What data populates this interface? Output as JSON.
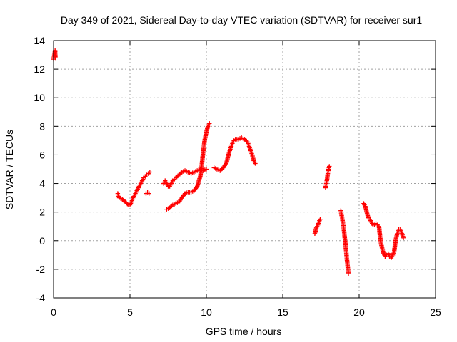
{
  "chart_data": {
    "type": "scatter",
    "title": "Day 349 of 2021, Sidereal Day-to-day VTEC variation (SDTVAR) for receiver sur1",
    "xlabel": "GPS time / hours",
    "ylabel": "SDTVAR / TECUs",
    "xlim": [
      0,
      25
    ],
    "ylim": [
      -4,
      14
    ],
    "xticks": [
      0,
      5,
      10,
      15,
      20,
      25
    ],
    "yticks": [
      -4,
      -2,
      0,
      2,
      4,
      6,
      8,
      10,
      12,
      14
    ],
    "grid": true,
    "marker": "plus",
    "color": "#ff0000",
    "segments": [
      [
        [
          0.0,
          12.7
        ],
        [
          0.05,
          13.0
        ],
        [
          0.1,
          13.3
        ],
        [
          0.12,
          12.8
        ]
      ],
      [
        [
          4.2,
          3.3
        ],
        [
          4.3,
          3.0
        ],
        [
          4.5,
          2.9
        ],
        [
          4.7,
          2.7
        ],
        [
          4.9,
          2.5
        ],
        [
          5.0,
          2.5
        ],
        [
          5.1,
          2.7
        ],
        [
          5.2,
          3.0
        ],
        [
          5.3,
          3.2
        ],
        [
          5.4,
          3.4
        ],
        [
          5.5,
          3.6
        ],
        [
          5.6,
          3.8
        ],
        [
          5.7,
          4.0
        ],
        [
          5.8,
          4.2
        ],
        [
          5.9,
          4.4
        ],
        [
          6.0,
          4.5
        ],
        [
          6.1,
          4.6
        ],
        [
          6.2,
          4.7
        ],
        [
          6.3,
          4.8
        ]
      ],
      [
        [
          6.05,
          3.3
        ],
        [
          6.15,
          3.4
        ],
        [
          6.25,
          3.3
        ]
      ],
      [
        [
          7.2,
          4.0
        ],
        [
          7.3,
          4.2
        ],
        [
          7.4,
          4.0
        ],
        [
          7.5,
          3.8
        ],
        [
          7.6,
          3.8
        ],
        [
          7.7,
          4.0
        ],
        [
          7.8,
          4.2
        ],
        [
          7.9,
          4.3
        ],
        [
          8.0,
          4.4
        ],
        [
          8.2,
          4.6
        ],
        [
          8.4,
          4.8
        ],
        [
          8.6,
          4.9
        ],
        [
          8.8,
          4.8
        ],
        [
          9.0,
          4.7
        ],
        [
          9.2,
          4.8
        ],
        [
          9.4,
          4.9
        ],
        [
          9.6,
          5.0
        ],
        [
          9.8,
          4.9
        ],
        [
          10.0,
          5.0
        ]
      ],
      [
        [
          7.4,
          2.2
        ],
        [
          7.6,
          2.3
        ],
        [
          7.8,
          2.5
        ],
        [
          8.0,
          2.6
        ],
        [
          8.2,
          2.7
        ],
        [
          8.4,
          3.0
        ],
        [
          8.6,
          3.3
        ],
        [
          8.8,
          3.4
        ],
        [
          9.0,
          3.4
        ],
        [
          9.2,
          3.5
        ],
        [
          9.4,
          3.8
        ],
        [
          9.6,
          4.5
        ],
        [
          9.7,
          5.3
        ],
        [
          9.8,
          6.3
        ],
        [
          9.9,
          7.1
        ],
        [
          10.0,
          7.6
        ],
        [
          10.1,
          8.0
        ],
        [
          10.2,
          8.2
        ]
      ],
      [
        [
          10.5,
          5.1
        ],
        [
          10.7,
          5.0
        ],
        [
          10.9,
          4.9
        ],
        [
          11.1,
          5.1
        ],
        [
          11.3,
          5.4
        ],
        [
          11.4,
          5.8
        ],
        [
          11.5,
          6.2
        ],
        [
          11.6,
          6.5
        ],
        [
          11.7,
          6.8
        ],
        [
          11.8,
          7.0
        ],
        [
          11.9,
          7.1
        ],
        [
          12.1,
          7.1
        ],
        [
          12.3,
          7.2
        ],
        [
          12.5,
          7.1
        ],
        [
          12.7,
          6.9
        ],
        [
          12.8,
          6.6
        ],
        [
          12.9,
          6.3
        ],
        [
          13.0,
          6.0
        ],
        [
          13.1,
          5.6
        ],
        [
          13.2,
          5.4
        ]
      ],
      [
        [
          17.1,
          0.5
        ],
        [
          17.2,
          0.9
        ],
        [
          17.3,
          1.1
        ],
        [
          17.4,
          1.4
        ],
        [
          17.45,
          1.5
        ]
      ],
      [
        [
          17.8,
          3.7
        ],
        [
          17.85,
          4.0
        ],
        [
          17.9,
          4.3
        ],
        [
          17.95,
          4.7
        ],
        [
          18.0,
          5.0
        ],
        [
          18.05,
          5.2
        ]
      ],
      [
        [
          18.8,
          2.1
        ],
        [
          18.9,
          1.5
        ],
        [
          19.0,
          0.8
        ],
        [
          19.05,
          0.3
        ],
        [
          19.1,
          -0.2
        ],
        [
          19.15,
          -0.7
        ],
        [
          19.2,
          -1.3
        ],
        [
          19.25,
          -1.8
        ],
        [
          19.3,
          -2.3
        ]
      ],
      [
        [
          20.3,
          2.6
        ],
        [
          20.4,
          2.4
        ],
        [
          20.5,
          2.0
        ],
        [
          20.6,
          1.6
        ],
        [
          20.7,
          1.5
        ],
        [
          20.8,
          1.3
        ],
        [
          20.9,
          1.1
        ],
        [
          21.0,
          1.1
        ],
        [
          21.1,
          1.2
        ],
        [
          21.2,
          1.1
        ],
        [
          21.3,
          1.0
        ],
        [
          21.35,
          0.5
        ],
        [
          21.4,
          0.0
        ],
        [
          21.5,
          -0.5
        ],
        [
          21.6,
          -0.9
        ],
        [
          21.7,
          -1.1
        ],
        [
          21.8,
          -1.0
        ],
        [
          21.9,
          -0.9
        ],
        [
          22.0,
          -1.1
        ],
        [
          22.1,
          -1.2
        ],
        [
          22.2,
          -1.0
        ],
        [
          22.3,
          -0.7
        ],
        [
          22.35,
          -0.3
        ],
        [
          22.4,
          0.1
        ],
        [
          22.5,
          0.5
        ],
        [
          22.6,
          0.8
        ],
        [
          22.7,
          0.8
        ],
        [
          22.8,
          0.5
        ],
        [
          22.9,
          0.2
        ]
      ]
    ]
  }
}
